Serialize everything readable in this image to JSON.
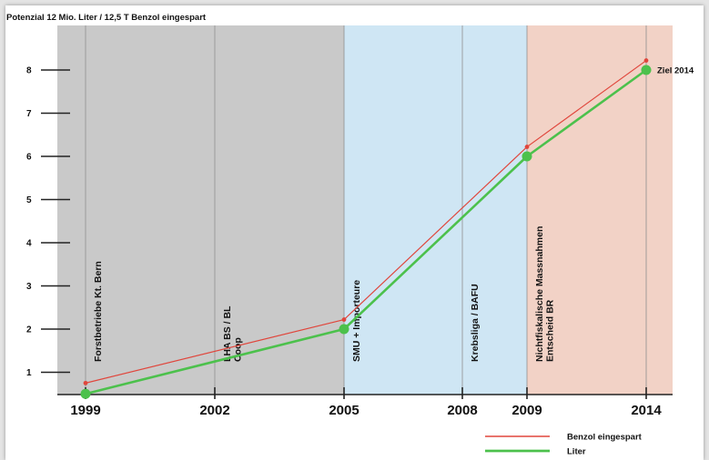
{
  "chart_data": {
    "type": "line",
    "title": "Potenzial 12 Mio. Liter / 12,5 T Benzol eingespart",
    "xlabel": "",
    "ylabel": "",
    "x": [
      1999,
      2002,
      2005,
      2008,
      2009,
      2014
    ],
    "x_tick_labels": [
      "1999",
      "2002",
      "2005",
      "2008",
      "2009",
      "2014"
    ],
    "ylim": [
      0.5,
      8.5
    ],
    "y_ticks": [
      1,
      2,
      3,
      4,
      5,
      6,
      7,
      8
    ],
    "series": [
      {
        "name": "Benzol eingespart",
        "color": "#e0463c",
        "x": [
          1999,
          2005,
          2009,
          2014
        ],
        "values": [
          0.75,
          2.22,
          6.22,
          8.22
        ]
      },
      {
        "name": "Liter",
        "color": "#4cc14c",
        "x": [
          1999,
          2005,
          2009,
          2014
        ],
        "values": [
          0.5,
          2.0,
          6.0,
          8.0
        ]
      }
    ],
    "background_bands": [
      {
        "from": 1999,
        "to": 2005,
        "color": "#c9c9c9"
      },
      {
        "from": 2005,
        "to": 2009,
        "color": "#cfe6f4"
      },
      {
        "from": 2009,
        "to": 2014,
        "color": "#f2d2c6"
      }
    ],
    "milestone_labels": [
      {
        "x": 1999,
        "lines": [
          "Forstbetriebe Kt. Bern"
        ]
      },
      {
        "x": 2002,
        "lines": [
          "LHA BS / BL",
          "Coop"
        ]
      },
      {
        "x": 2005,
        "lines": [
          "SMU + Importeure"
        ]
      },
      {
        "x": 2008,
        "lines": [
          "Krebsliga / BAFU"
        ]
      },
      {
        "x": 2009,
        "lines": [
          "Nichtfiskalische Massnahmen",
          "Entscheid BR"
        ]
      }
    ],
    "annotations": [
      {
        "text": "Ziel 2014",
        "x": 2014,
        "y": 8
      }
    ],
    "grid": "vertical lines at milestone years",
    "legend_position": "bottom-right"
  }
}
